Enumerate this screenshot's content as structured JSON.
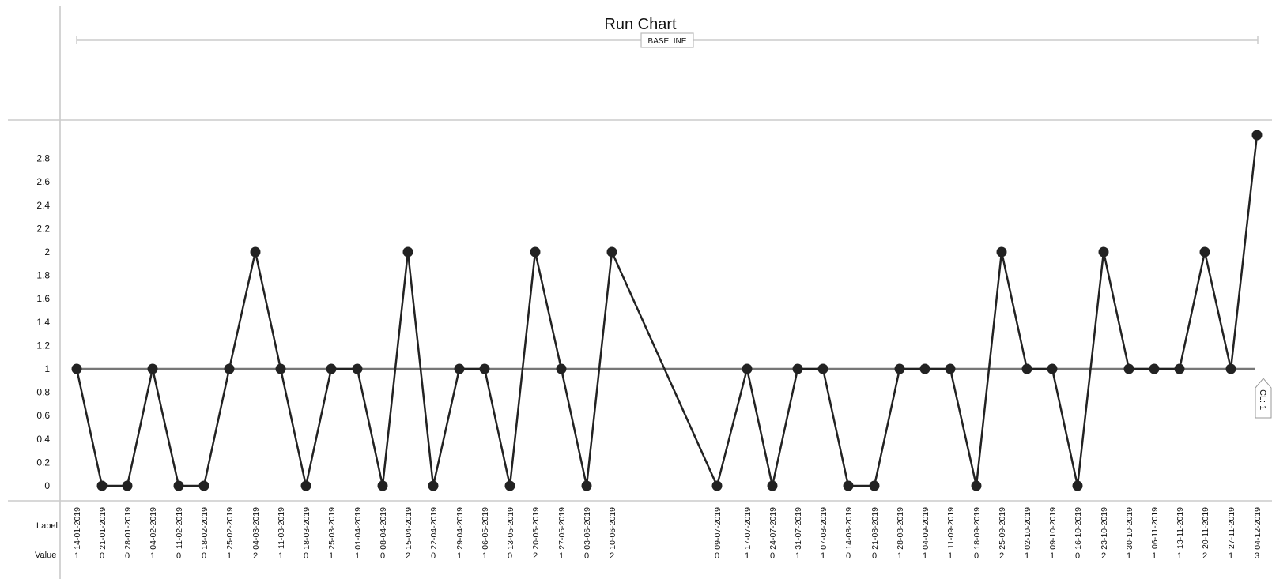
{
  "chart_data": {
    "type": "line",
    "title": "Run Chart",
    "phase_label": "BASELINE",
    "center_line_label": "CL: 1",
    "center_line": 1,
    "row_labels": {
      "label": "Label",
      "value": "Value"
    },
    "ylim": [
      0,
      3
    ],
    "y_ticks": [
      "0",
      "0.2",
      "0.4",
      "0.6",
      "0.8",
      "1",
      "1.2",
      "1.4",
      "1.6",
      "1.8",
      "2",
      "2.2",
      "2.4",
      "2.6",
      "2.8"
    ],
    "x": [
      "14-01-2019",
      "21-01-2019",
      "28-01-2019",
      "04-02-2019",
      "11-02-2019",
      "18-02-2019",
      "25-02-2019",
      "04-03-2019",
      "11-03-2019",
      "18-03-2019",
      "25-03-2019",
      "01-04-2019",
      "08-04-2019",
      "15-04-2019",
      "22-04-2019",
      "29-04-2019",
      "06-05-2019",
      "13-05-2019",
      "20-05-2019",
      "27-05-2019",
      "03-06-2019",
      "10-06-2019",
      "09-07-2019",
      "17-07-2019",
      "24-07-2019",
      "31-07-2019",
      "07-08-2019",
      "14-08-2019",
      "21-08-2019",
      "28-08-2019",
      "04-09-2019",
      "11-09-2019",
      "18-09-2019",
      "25-09-2019",
      "02-10-2019",
      "09-10-2019",
      "16-10-2019",
      "23-10-2019",
      "30-10-2019",
      "06-11-2019",
      "13-11-2019",
      "20-11-2019",
      "27-11-2019",
      "04-12-2019"
    ],
    "values": [
      1,
      0,
      0,
      1,
      0,
      0,
      1,
      2,
      1,
      0,
      1,
      1,
      0,
      2,
      0,
      1,
      1,
      0,
      2,
      1,
      0,
      2,
      0,
      1,
      0,
      1,
      1,
      0,
      0,
      1,
      1,
      1,
      0,
      2,
      1,
      1,
      0,
      2,
      1,
      1,
      1,
      2,
      1,
      3
    ],
    "value_labels": [
      "1",
      "0",
      "0",
      "1",
      "0",
      "0",
      "1",
      "2",
      "1",
      "0",
      "1",
      "1",
      "0",
      "2",
      "0",
      "1",
      "1",
      "0",
      "2",
      "1",
      "0",
      "2",
      "0",
      "1",
      "0",
      "1",
      "1",
      "0",
      "0",
      "1",
      "1",
      "1",
      "0",
      "2",
      "1",
      "1",
      "0",
      "2",
      "1",
      "1",
      "1",
      "2",
      "1",
      "3"
    ],
    "x_positions_note_omitted": true,
    "colors": {
      "line": "#222222",
      "center_line": "#777777",
      "axis": "#cccccc"
    },
    "grid": false
  }
}
